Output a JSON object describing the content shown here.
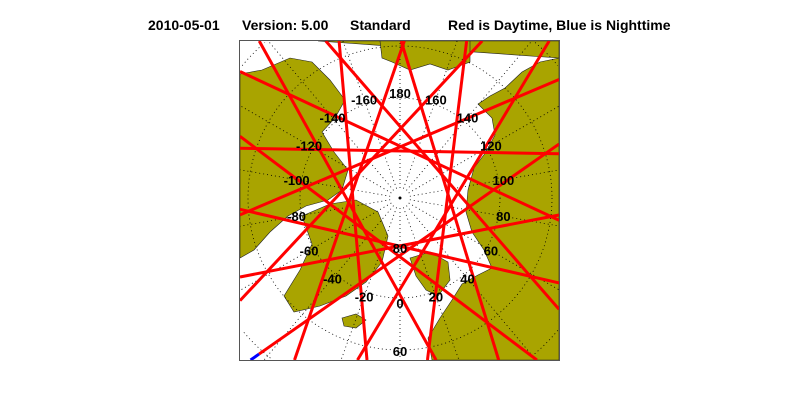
{
  "header": {
    "date": "2010-05-01",
    "version": "Version: 5.00",
    "mode": "Standard",
    "legend": "Red is Daytime, Blue is Nighttime"
  },
  "map": {
    "projection": "north-polar stereographic",
    "longitude_labels": [
      "180",
      "160",
      "140",
      "120",
      "100",
      "80",
      "60",
      "40",
      "20",
      "0",
      "-20",
      "-40",
      "-60",
      "-80",
      "-100",
      "-120",
      "-140",
      "-160"
    ],
    "latitude_labels": [
      "80",
      "60"
    ],
    "colors": {
      "land": "#a9a400",
      "ocean": "#ffffff",
      "daytime_track": "#ff0000",
      "nighttime_track": "#0000ff",
      "frame": "#555555"
    }
  }
}
